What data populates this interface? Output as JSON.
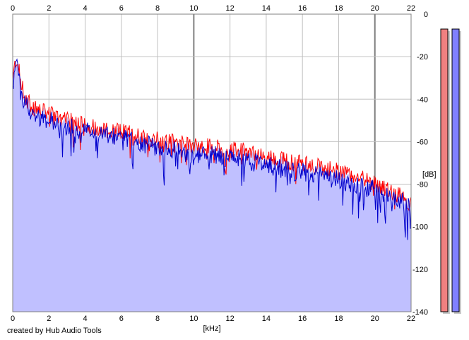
{
  "footer": {
    "credit": "created by Hub Audio Tools"
  },
  "colors": {
    "fill": "#c0c0ff",
    "left_channel": "#ff0000",
    "right_channel": "#0000cc",
    "grid": "#c0c0c0",
    "major_grid": "#808080",
    "meter_left": "#f08080",
    "meter_right": "#8080ff"
  },
  "chart_data": {
    "type": "line",
    "xlabel": "[kHz]",
    "ylabel": "[dB]",
    "xlim": [
      0,
      22
    ],
    "ylim": [
      -140,
      0
    ],
    "x_ticks": [
      0,
      2,
      4,
      6,
      8,
      10,
      12,
      14,
      16,
      18,
      20,
      22
    ],
    "y_ticks": [
      0,
      -20,
      -40,
      -60,
      -80,
      -100,
      -120,
      -140
    ],
    "grid": true,
    "series": [
      {
        "channel": "left",
        "color": "#ff0000",
        "x": [
          0,
          0.1,
          0.2,
          0.3,
          0.4,
          0.5,
          0.6,
          0.7,
          0.8,
          0.9,
          1,
          1.2,
          1.4,
          1.6,
          1.8,
          2,
          2.4,
          2.8,
          3,
          3.5,
          4,
          4.5,
          5,
          5.5,
          6,
          6.5,
          7,
          7.5,
          8,
          8.5,
          9,
          9.5,
          10,
          10.5,
          11,
          11.5,
          12,
          12.5,
          13,
          13.5,
          14,
          14.5,
          15,
          15.5,
          16,
          16.5,
          17,
          17.5,
          18,
          18.5,
          19,
          19.5,
          20,
          20.5,
          21,
          21.5,
          22
        ],
        "y": [
          -32,
          -25,
          -21,
          -24,
          -30,
          -33,
          -37,
          -39,
          -40,
          -42,
          -43,
          -44,
          -45,
          -46,
          -46,
          -47,
          -48,
          -50,
          -50,
          -51,
          -52,
          -53,
          -54,
          -55,
          -55,
          -56,
          -57,
          -58,
          -59,
          -60,
          -60,
          -61,
          -62,
          -62,
          -62,
          -63,
          -64,
          -64,
          -65,
          -66,
          -67,
          -68,
          -69,
          -70,
          -70,
          -71,
          -72,
          -73,
          -74,
          -75,
          -77,
          -78,
          -80,
          -82,
          -84,
          -86,
          -89
        ]
      },
      {
        "channel": "right",
        "color": "#0000cc",
        "x": [
          0,
          0.1,
          0.2,
          0.3,
          0.4,
          0.5,
          0.6,
          0.7,
          0.8,
          0.9,
          1,
          1.2,
          1.4,
          1.6,
          1.8,
          2,
          2.4,
          2.8,
          3,
          3.5,
          4,
          4.5,
          5,
          5.5,
          6,
          6.5,
          7,
          7.5,
          8,
          8.5,
          9,
          9.5,
          10,
          10.5,
          11,
          11.5,
          12,
          12.5,
          13,
          13.5,
          14,
          14.5,
          15,
          15.5,
          16,
          16.5,
          17,
          17.5,
          18,
          18.5,
          19,
          19.5,
          20,
          20.5,
          21,
          21.5,
          22
        ],
        "y": [
          -35,
          -28,
          -24,
          -27,
          -33,
          -36,
          -40,
          -42,
          -43,
          -45,
          -46,
          -47,
          -48,
          -49,
          -49,
          -50,
          -51,
          -53,
          -53,
          -54,
          -55,
          -56,
          -57,
          -58,
          -58,
          -59,
          -60,
          -61,
          -63,
          -64,
          -64,
          -65,
          -66,
          -66,
          -66,
          -67,
          -68,
          -68,
          -69,
          -70,
          -71,
          -72,
          -73,
          -74,
          -74,
          -75,
          -76,
          -77,
          -78,
          -79,
          -80,
          -81,
          -83,
          -85,
          -86,
          -88,
          -92
        ]
      }
    ],
    "level_meters": [
      {
        "channel": "left",
        "color": "#f08080",
        "level_db": -7
      },
      {
        "channel": "right",
        "color": "#8080ff",
        "level_db": -7
      }
    ]
  }
}
